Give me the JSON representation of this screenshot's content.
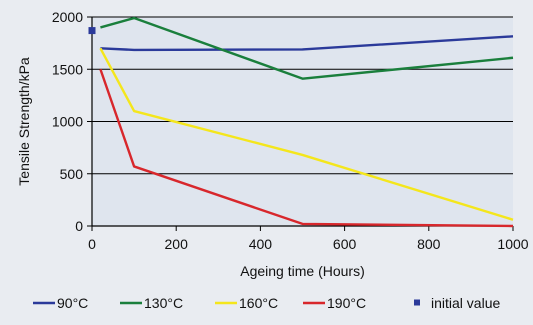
{
  "chart_data": {
    "type": "line",
    "xlabel": "Ageing time (Hours)",
    "ylabel": "Tensile Strength/kPa",
    "xlim": [
      0,
      1000
    ],
    "ylim": [
      0,
      2000
    ],
    "xticks": [
      0,
      200,
      400,
      600,
      800,
      1000
    ],
    "yticks": [
      0,
      500,
      1000,
      1500,
      2000
    ],
    "grid": "horizontal",
    "legend_position": "bottom",
    "series": [
      {
        "name": "90°C",
        "color": "#2b3a9a",
        "x": [
          20,
          100,
          500,
          1000
        ],
        "y": [
          1700,
          1685,
          1690,
          1815
        ]
      },
      {
        "name": "130°C",
        "color": "#1a7f3c",
        "x": [
          20,
          100,
          500,
          1000
        ],
        "y": [
          1900,
          1990,
          1410,
          1610
        ]
      },
      {
        "name": "160°C",
        "color": "#f4e61c",
        "x": [
          20,
          100,
          500,
          1000
        ],
        "y": [
          1700,
          1100,
          680,
          60
        ]
      },
      {
        "name": "190°C",
        "color": "#d8272c",
        "x": [
          20,
          100,
          500,
          1000
        ],
        "y": [
          1500,
          570,
          20,
          0
        ]
      }
    ],
    "markers": [
      {
        "name": "initial value",
        "color": "#2b3a9a",
        "x": [
          0
        ],
        "y": [
          1870
        ]
      }
    ]
  }
}
